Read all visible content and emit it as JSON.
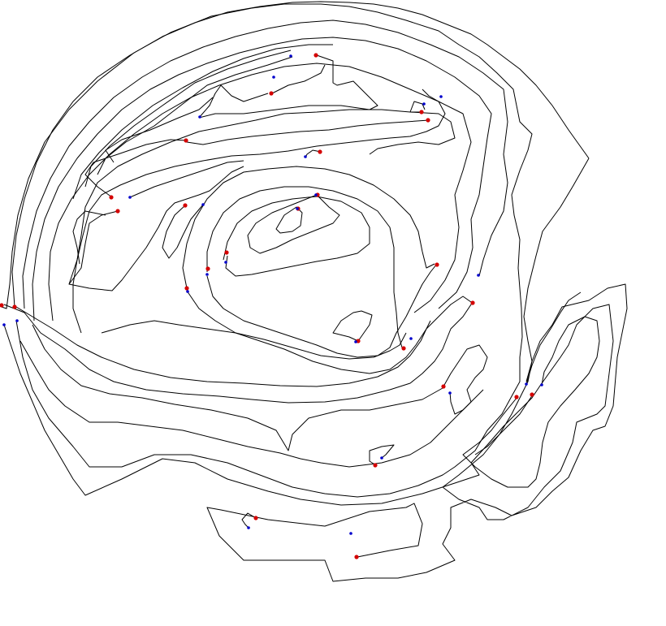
{
  "map": {
    "contour_color": "#000000",
    "start_marker_color": "#d40000",
    "end_marker_color": "#0000cc",
    "background_color": "#ffffff",
    "open_contour_count": 38,
    "closed_contour_count": 5
  }
}
